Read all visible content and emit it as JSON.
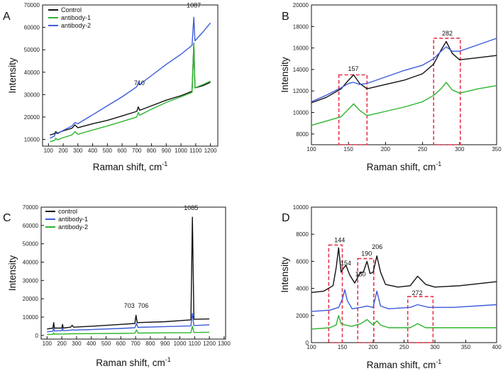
{
  "colors": {
    "black": "#111111",
    "green": "#2db52d",
    "blue": "#3b5bdb",
    "red": "#e8334a"
  },
  "chart_data": [
    {
      "panel": "A",
      "type": "line",
      "xlabel": "Raman shift, cm",
      "xlabel_sup": "-1",
      "ylabel": "Intensity",
      "xlim": [
        60,
        1250
      ],
      "ylim": [
        7000,
        70000
      ],
      "xticks": [
        100,
        200,
        300,
        400,
        500,
        600,
        700,
        800,
        900,
        1000,
        1100,
        1200
      ],
      "yticks": [
        10000,
        20000,
        30000,
        40000,
        50000,
        60000,
        70000
      ],
      "legend": "top-left",
      "annotations": [
        {
          "x": 710,
          "y": 33000,
          "text": "710"
        },
        {
          "x": 1087,
          "y": 67000,
          "text": "1087"
        }
      ],
      "series": [
        {
          "name": "Control",
          "color": "#111111",
          "x": [
            110,
            140,
            150,
            160,
            200,
            260,
            280,
            300,
            400,
            500,
            600,
            700,
            710,
            720,
            800,
            900,
            1000,
            1075,
            1087,
            1095,
            1150,
            1200
          ],
          "y": [
            12000,
            12500,
            13500,
            12800,
            13800,
            15000,
            16500,
            15200,
            17000,
            18500,
            20500,
            22500,
            24500,
            23000,
            25000,
            27500,
            29500,
            31500,
            53000,
            33000,
            34000,
            35500
          ]
        },
        {
          "name": "antibody-1",
          "color": "#2db52d",
          "x": [
            110,
            140,
            150,
            160,
            200,
            260,
            280,
            300,
            400,
            500,
            600,
            700,
            710,
            720,
            800,
            900,
            1000,
            1075,
            1087,
            1095,
            1150,
            1200
          ],
          "y": [
            9000,
            9500,
            10500,
            9800,
            10800,
            12000,
            13500,
            12300,
            14200,
            16000,
            18000,
            20000,
            22000,
            20800,
            23500,
            26500,
            29000,
            31000,
            53000,
            33000,
            34500,
            36000
          ]
        },
        {
          "name": "antibody-2",
          "color": "#3b5bdb",
          "x": [
            110,
            140,
            150,
            160,
            200,
            260,
            280,
            300,
            400,
            500,
            600,
            700,
            710,
            720,
            800,
            900,
            1000,
            1075,
            1087,
            1095,
            1150,
            1200
          ],
          "y": [
            10500,
            11500,
            13000,
            12500,
            14000,
            16000,
            17500,
            17000,
            21000,
            25000,
            29000,
            33500,
            35500,
            34500,
            38500,
            43500,
            48000,
            52000,
            64500,
            54000,
            58000,
            62000
          ]
        }
      ]
    },
    {
      "panel": "B",
      "type": "line",
      "xlabel": "Raman shift, cm",
      "xlabel_sup": "-1",
      "ylabel": "Intensity",
      "xlim": [
        100,
        350
      ],
      "ylim": [
        7000,
        20000
      ],
      "xticks": [
        100,
        150,
        200,
        250,
        300,
        350
      ],
      "yticks": [
        8000,
        10000,
        12000,
        14000,
        16000,
        18000,
        20000
      ],
      "annotations": [
        {
          "x": 157,
          "y": 13600,
          "text": "157"
        },
        {
          "x": 282,
          "y": 16900,
          "text": "282"
        }
      ],
      "highlight_boxes": [
        {
          "x0": 137,
          "x1": 175,
          "y0": 7000,
          "y1": 13500
        },
        {
          "x0": 265,
          "x1": 301,
          "y0": 7000,
          "y1": 16900
        }
      ],
      "series": [
        {
          "name": "Control",
          "color": "#111111",
          "x": [
            100,
            120,
            140,
            150,
            157,
            165,
            175,
            200,
            225,
            250,
            265,
            275,
            282,
            290,
            300,
            325,
            350
          ],
          "y": [
            10900,
            11400,
            12200,
            13000,
            13500,
            12700,
            12200,
            12600,
            13000,
            13600,
            14500,
            15800,
            16600,
            15500,
            14900,
            15100,
            15300
          ]
        },
        {
          "name": "antibody-1",
          "color": "#2db52d",
          "x": [
            100,
            120,
            140,
            150,
            157,
            165,
            175,
            200,
            225,
            250,
            265,
            275,
            282,
            290,
            300,
            325,
            350
          ],
          "y": [
            8800,
            9200,
            9600,
            10300,
            10800,
            10200,
            9700,
            10100,
            10500,
            11000,
            11600,
            12200,
            12800,
            12100,
            11800,
            12200,
            12500
          ]
        },
        {
          "name": "antibody-2",
          "color": "#3b5bdb",
          "x": [
            100,
            120,
            140,
            150,
            157,
            165,
            175,
            200,
            225,
            250,
            265,
            275,
            282,
            290,
            300,
            325,
            350
          ],
          "y": [
            11000,
            11600,
            12300,
            12700,
            12800,
            12600,
            12700,
            13300,
            13900,
            14400,
            15000,
            15700,
            16100,
            15700,
            15700,
            16300,
            16900
          ]
        }
      ]
    },
    {
      "panel": "C",
      "type": "line",
      "xlabel": "Raman shift, cm",
      "xlabel_sup": "-1",
      "ylabel": "Intensity",
      "xlim": [
        60,
        1310
      ],
      "ylim": [
        -2000,
        70000
      ],
      "xticks": [
        100,
        200,
        300,
        400,
        500,
        600,
        700,
        800,
        900,
        1000,
        1100,
        1200,
        1300
      ],
      "yticks": [
        0,
        10000,
        20000,
        30000,
        40000,
        50000,
        60000,
        70000
      ],
      "legend": "top-left",
      "annotations": [
        {
          "x": 703,
          "y": 13500,
          "text": "703"
        },
        {
          "x": 706,
          "y": 13500,
          "text": "706"
        },
        {
          "x": 1085,
          "y": 67000,
          "text": "1085"
        }
      ],
      "series": [
        {
          "name": "control",
          "color": "#111111",
          "x": [
            100,
            140,
            145,
            150,
            200,
            205,
            210,
            260,
            270,
            280,
            400,
            600,
            695,
            703,
            711,
            900,
            1075,
            1085,
            1095,
            1200
          ],
          "y": [
            3500,
            4000,
            7000,
            4000,
            4000,
            6000,
            4000,
            4500,
            5500,
            4500,
            5000,
            6000,
            6500,
            11000,
            7000,
            7500,
            8500,
            64500,
            8800,
            9000
          ]
        },
        {
          "name": "antibody-1",
          "color": "#3b5bdb",
          "x": [
            100,
            140,
            145,
            150,
            200,
            205,
            210,
            260,
            270,
            280,
            400,
            600,
            695,
            706,
            716,
            900,
            1075,
            1085,
            1095,
            1200
          ],
          "y": [
            2000,
            2300,
            4000,
            2400,
            2600,
            3800,
            2600,
            2800,
            3200,
            2900,
            3200,
            3800,
            4200,
            6500,
            4400,
            4800,
            5200,
            12000,
            5400,
            5800
          ]
        },
        {
          "name": "antibody-2",
          "color": "#2db52d",
          "x": [
            100,
            140,
            145,
            150,
            200,
            270,
            400,
            600,
            695,
            706,
            716,
            900,
            1075,
            1085,
            1095,
            1200
          ],
          "y": [
            500,
            600,
            1400,
            700,
            800,
            900,
            1000,
            1100,
            1200,
            3000,
            1300,
            1400,
            1500,
            5000,
            1600,
            1700
          ]
        }
      ]
    },
    {
      "panel": "D",
      "type": "line",
      "xlabel": "Raman shift, cm",
      "xlabel_sup": "-1",
      "ylabel": "Intensity",
      "xlim": [
        100,
        400
      ],
      "ylim": [
        0,
        10000
      ],
      "xticks": [
        100,
        150,
        200,
        250,
        300,
        350,
        400
      ],
      "yticks": [
        0,
        2000,
        4000,
        6000,
        8000,
        10000
      ],
      "annotations": [
        {
          "x": 144,
          "y": 7300,
          "text": "144"
        },
        {
          "x": 154,
          "y": 5600,
          "text": "154"
        },
        {
          "x": 180,
          "y": 4800,
          "text": "180"
        },
        {
          "x": 190,
          "y": 6300,
          "text": "190"
        },
        {
          "x": 206,
          "y": 6800,
          "text": "206"
        },
        {
          "x": 272,
          "y": 3400,
          "text": "272"
        }
      ],
      "highlight_boxes": [
        {
          "x0": 128,
          "x1": 150,
          "y0": 0,
          "y1": 7200
        },
        {
          "x0": 175,
          "x1": 201,
          "y0": 0,
          "y1": 6200
        },
        {
          "x0": 256,
          "x1": 297,
          "y0": 0,
          "y1": 3400
        }
      ],
      "series": [
        {
          "name": "Control",
          "color": "#111111",
          "x": [
            100,
            120,
            135,
            140,
            144,
            148,
            152,
            156,
            162,
            170,
            176,
            180,
            184,
            190,
            195,
            200,
            206,
            212,
            220,
            240,
            260,
            272,
            285,
            300,
            340,
            400
          ],
          "y": [
            3700,
            3800,
            4200,
            5500,
            7000,
            5200,
            5500,
            5700,
            5000,
            4400,
            4900,
            5200,
            5200,
            6000,
            5100,
            5200,
            6400,
            5200,
            4300,
            4100,
            4200,
            4900,
            4300,
            4100,
            4200,
            4500
          ]
        },
        {
          "name": "antibody-2",
          "color": "#3b5bdb",
          "x": [
            100,
            130,
            144,
            150,
            154,
            158,
            166,
            180,
            190,
            200,
            206,
            212,
            225,
            260,
            272,
            290,
            330,
            400
          ],
          "y": [
            2300,
            2400,
            2600,
            3200,
            3900,
            3100,
            2500,
            2600,
            2700,
            2600,
            3800,
            2700,
            2500,
            2600,
            2800,
            2600,
            2600,
            2800
          ]
        },
        {
          "name": "antibody-1",
          "color": "#2db52d",
          "x": [
            100,
            130,
            140,
            144,
            148,
            155,
            165,
            180,
            190,
            200,
            206,
            212,
            225,
            260,
            272,
            285,
            330,
            400
          ],
          "y": [
            1000,
            1100,
            1300,
            2000,
            1400,
            1300,
            1200,
            1400,
            1700,
            1300,
            1600,
            1300,
            1100,
            1100,
            1400,
            1100,
            1100,
            1100
          ]
        }
      ]
    }
  ]
}
